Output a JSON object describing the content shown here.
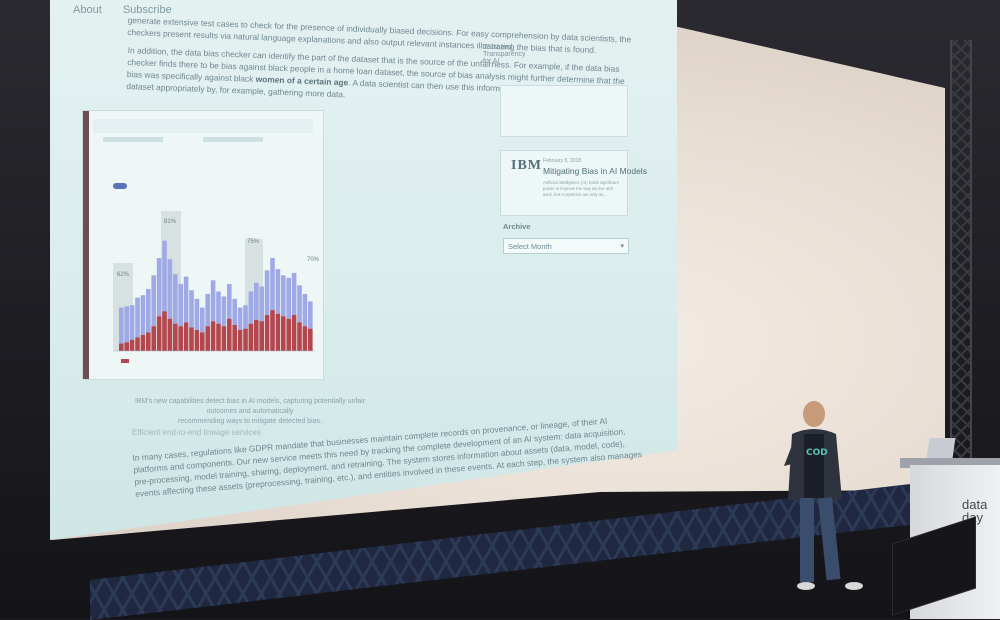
{
  "blog_nav": {
    "items": [
      "About",
      "Subscribe"
    ]
  },
  "browser_tabs": {
    "items": [
      "Trust and Transparency for AI"
    ]
  },
  "article": {
    "lines_top": [
      "generate extensive test cases to check for the presence of individually biased decisions. For easy comprehension by data scientists, the",
      "checkers present results via natural language explanations and also output relevant instances illustrating the bias that is found."
    ],
    "lines_p2": [
      "In addition, the data bias checker can identify the part of the dataset that is the source of the unfairness. For example, if the data bias",
      "checker finds there to be bias against black people in a home loan dataset, the source of bias analysis might further determine that the"
    ],
    "line_p2_3_a": "bias was specifically against black ",
    "line_p2_3_bold": "women of a certain age",
    "line_p2_3_b": ". A data scientist can then use this information to supplement this part of the",
    "line_p2_4": "dataset appropriately by, for example, gathering more data.",
    "caption_lines": [
      "IBM's new capabilities detect bias in AI models, capturing potentially unfair outcomes and automatically",
      "recommending ways to mitigate detected bias."
    ],
    "subheading": "Efficient end-to-end lineage services",
    "lines_p3": [
      "In many cases, regulations like GDPR mandate that businesses maintain complete records on provenance, or lineage, of their AI",
      "platforms and components. Our new service meets this need by tracking the complete development of an AI system: data acquisition,",
      "pre-processing, model training, sharing, deployment, and retraining. The system stores information about assets (data, model, code),",
      "events affecting these assets (preprocessing, training, etc.), and entities involved in these events. At each step, the system also manages"
    ]
  },
  "figure": {
    "labels": [
      "81%",
      "75%",
      "70%",
      "62%"
    ]
  },
  "sidebar": {
    "related_post": {
      "logo": "IBM",
      "date": "February 8, 2018",
      "title": "Mitigating Bias in AI Models",
      "excerpt": "Artificial intelligence (AI) holds significant power to improve the way we live and work, but AI systems are only as..."
    },
    "archive": {
      "label": "Archive",
      "select_value": "Select Month"
    }
  },
  "stage": {
    "podium_lines": [
      "data",
      "day"
    ]
  },
  "colors": {
    "slide_bg": "#d9ecec",
    "bar_blue": "#9fa9e6",
    "bar_red": "#b4464e",
    "speaker_shirt_text": "#59c3b3"
  },
  "icons": {
    "select_chevron": "chevron-down-icon"
  }
}
